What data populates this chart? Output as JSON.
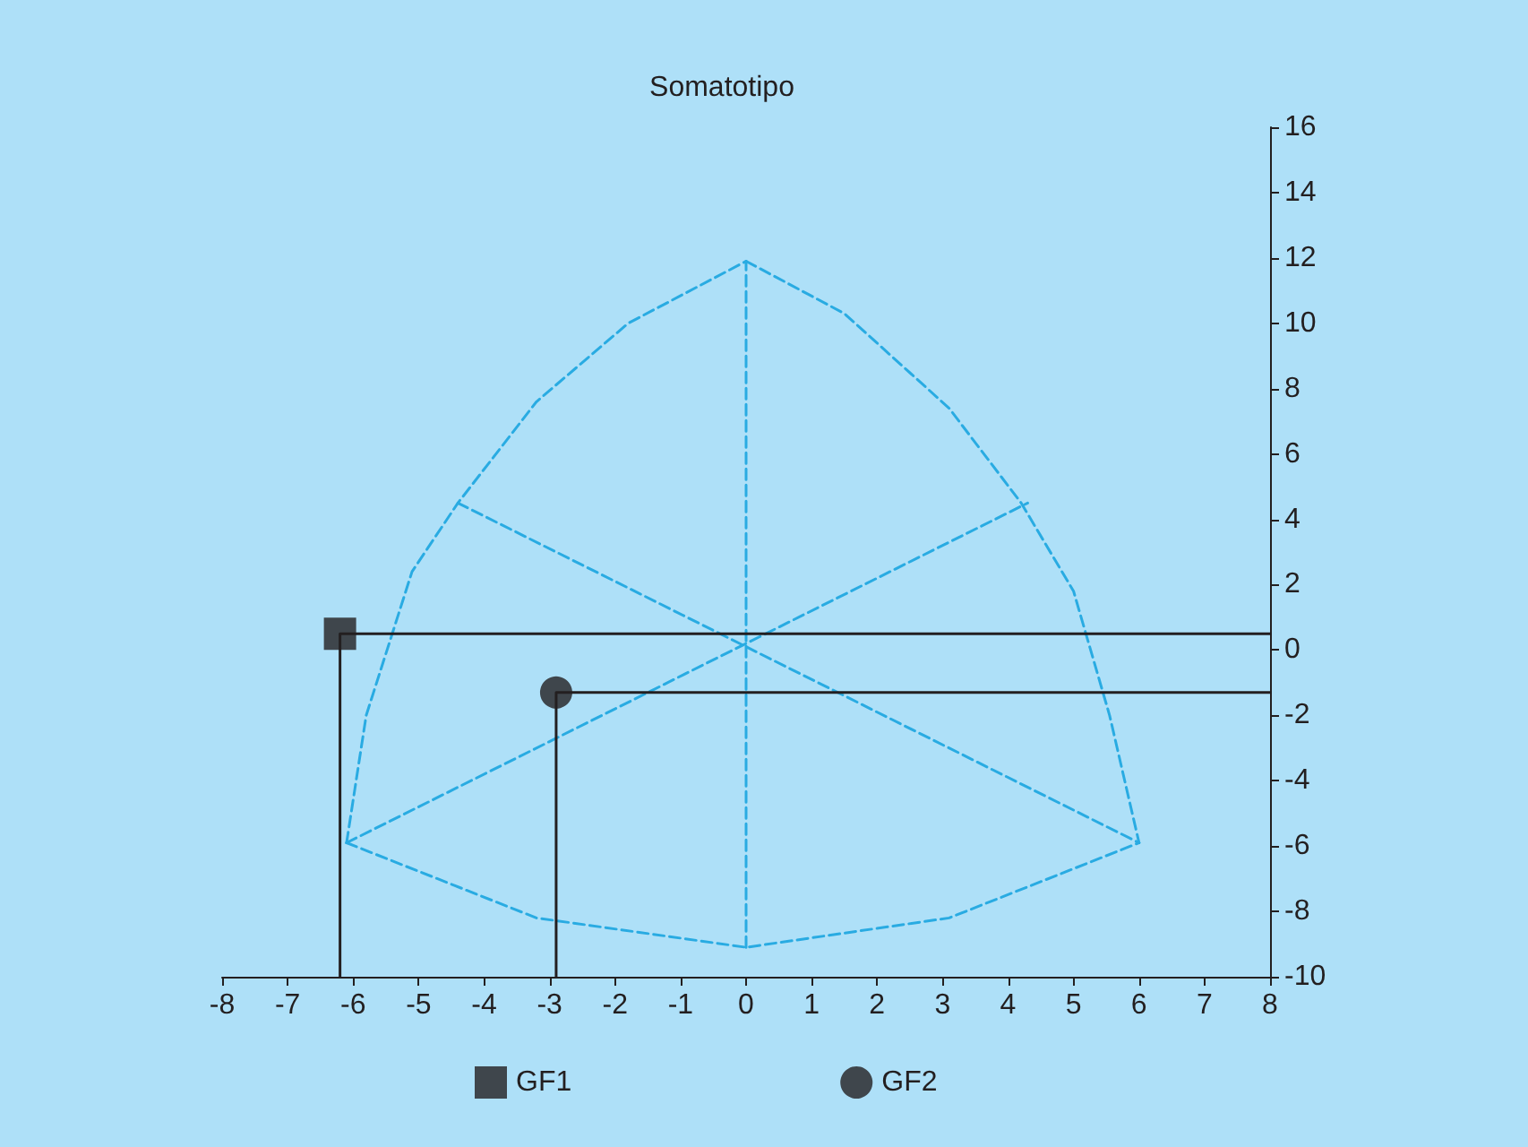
{
  "chart_data": {
    "type": "scatter",
    "title": "Somatotipo",
    "xlim": [
      -8,
      8
    ],
    "xticks": [
      -8,
      -7,
      -6,
      -5,
      -4,
      -3,
      -2,
      -1,
      0,
      1,
      2,
      3,
      4,
      5,
      6,
      7,
      8
    ],
    "ylim": [
      -10,
      16
    ],
    "yticks": [
      -10,
      -8,
      -6,
      -4,
      -2,
      0,
      2,
      4,
      6,
      8,
      10,
      12,
      14,
      16
    ],
    "grid": false,
    "legend": "bottom",
    "series": [
      {
        "type": "line",
        "color": "#29abe2",
        "line_style": "dashed",
        "marker": "none",
        "x": [
          -6.1,
          -5.8,
          -5.1,
          -4.4,
          -3.2,
          -1.8,
          0
        ],
        "values": [
          -5.9,
          -2,
          2.4,
          4.5,
          7.6,
          10,
          11.9
        ]
      },
      {
        "type": "line",
        "color": "#29abe2",
        "line_style": "dashed",
        "marker": "none",
        "x": [
          0,
          1.5,
          3.1,
          4.2,
          5.0,
          5.55,
          6.0
        ],
        "values": [
          11.9,
          10.3,
          7.4,
          4.5,
          1.8,
          -2,
          -5.9
        ]
      },
      {
        "type": "line",
        "color": "#29abe2",
        "line_style": "dashed",
        "marker": "none",
        "x": [
          -6.1,
          -3.2,
          0,
          3.1,
          6.0
        ],
        "values": [
          -5.9,
          -8.2,
          -9.1,
          -8.2,
          -5.9
        ]
      },
      {
        "type": "line",
        "color": "#29abe2",
        "line_style": "dashed",
        "marker": "none",
        "x": [
          0,
          0
        ],
        "values": [
          -9.1,
          11.9
        ]
      },
      {
        "type": "line",
        "color": "#29abe2",
        "line_style": "dashed",
        "marker": "none",
        "x": [
          -6.1,
          4.3
        ],
        "values": [
          -5.9,
          4.5
        ]
      },
      {
        "type": "line",
        "color": "#29abe2",
        "line_style": "dashed",
        "marker": "none",
        "x": [
          -4.4,
          6.0
        ],
        "values": [
          4.5,
          -5.9
        ]
      },
      {
        "type": "line",
        "color": "#231f20",
        "line_style": "solid",
        "marker": "none",
        "x": [
          -6.2,
          -6.2,
          8
        ],
        "values": [
          -10,
          0.5,
          0.5
        ]
      },
      {
        "type": "line",
        "color": "#231f20",
        "line_style": "solid",
        "marker": "none",
        "x": [
          -2.9,
          -2.9,
          8
        ],
        "values": [
          -10,
          -1.3,
          -1.3
        ]
      },
      {
        "name": "GF1",
        "color": "#231f20",
        "marker": "square",
        "x": [
          -6.2
        ],
        "values": [
          0.5
        ]
      },
      {
        "name": "GF2",
        "color": "#231f20",
        "marker": "circle",
        "x": [
          -2.9
        ],
        "values": [
          -1.3
        ]
      }
    ]
  }
}
